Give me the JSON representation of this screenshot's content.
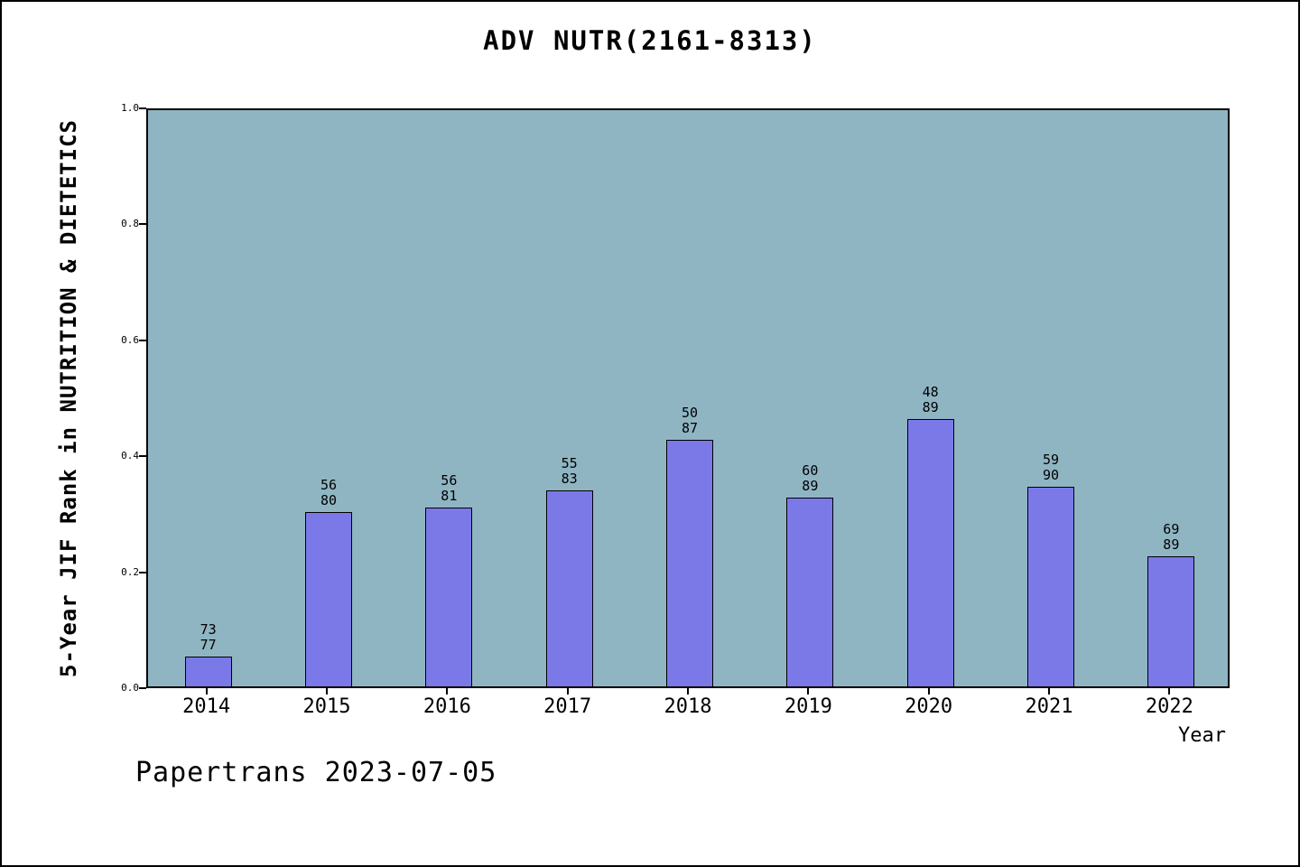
{
  "chart_data": {
    "type": "bar",
    "title": "ADV NUTR(2161-8313)",
    "xlabel": "Year",
    "ylabel": "5-Year JIF Rank in NUTRITION & DIETETICS",
    "ylim": [
      0,
      1
    ],
    "yticks": [
      "0.0",
      "0.2",
      "0.4",
      "0.6",
      "0.8",
      "1.0"
    ],
    "categories": [
      "2014",
      "2015",
      "2016",
      "2017",
      "2018",
      "2019",
      "2020",
      "2021",
      "2022"
    ],
    "series": [
      {
        "name": "5-Year JIF Rank in NUTRITION & DIETETICS",
        "points": [
          {
            "year": "2014",
            "rank": 73,
            "total": 77,
            "value": 0.0519
          },
          {
            "year": "2015",
            "rank": 56,
            "total": 80,
            "value": 0.3
          },
          {
            "year": "2016",
            "rank": 56,
            "total": 81,
            "value": 0.3086
          },
          {
            "year": "2017",
            "rank": 55,
            "total": 83,
            "value": 0.3373
          },
          {
            "year": "2018",
            "rank": 50,
            "total": 87,
            "value": 0.4253
          },
          {
            "year": "2019",
            "rank": 60,
            "total": 89,
            "value": 0.3258
          },
          {
            "year": "2020",
            "rank": 48,
            "total": 89,
            "value": 0.4607
          },
          {
            "year": "2021",
            "rank": 59,
            "total": 90,
            "value": 0.3444
          },
          {
            "year": "2022",
            "rank": 69,
            "total": 89,
            "value": 0.2247
          }
        ]
      }
    ],
    "legend": null,
    "grid": false,
    "plot_bg_color": "#8fb5c3",
    "bar_color": "#7b79e8"
  },
  "footer": {
    "text": "Papertrans 2023-07-05"
  }
}
